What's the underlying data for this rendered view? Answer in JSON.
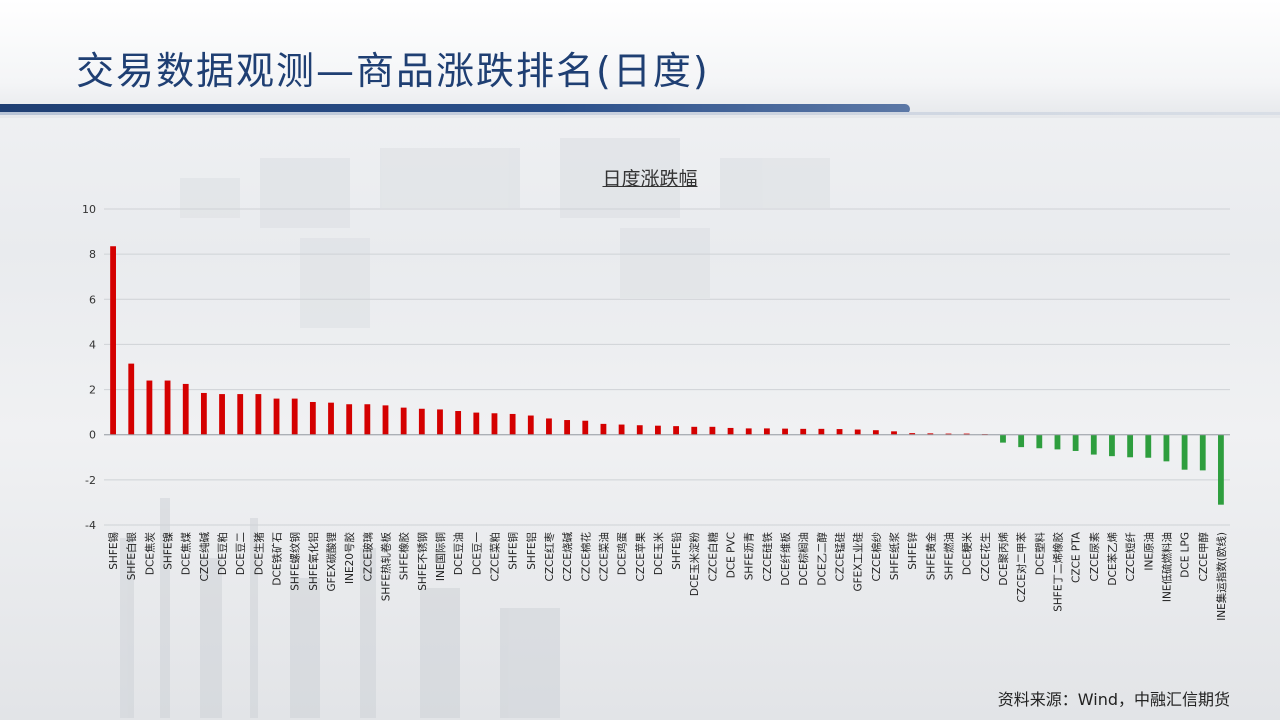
{
  "page": {
    "title": "交易数据观测—商品涨跌排名(日度)",
    "source": "资料来源：Wind，中融汇信期货"
  },
  "colors": {
    "up": "#d40000",
    "down": "#2e9e3e",
    "title": "#1f3f73",
    "accent_line": "#1f3f73"
  },
  "chart_data": {
    "type": "bar",
    "title": "日度涨跌幅",
    "xlabel": "",
    "ylabel": "",
    "ylim": [
      -4,
      10
    ],
    "yticks": [
      -4,
      -2,
      0,
      2,
      4,
      6,
      8,
      10
    ],
    "grid": true,
    "legend": "none",
    "categories": [
      "SHFE锡",
      "SHFE白银",
      "DCE焦炭",
      "SHFE镍",
      "DCE焦煤",
      "CZCE纯碱",
      "DCE豆粕",
      "DCE豆二",
      "DCE生猪",
      "DCE铁矿石",
      "SHFE螺纹钢",
      "SHFE氧化铝",
      "GFEX碳酸锂",
      "INE20号胶",
      "CZCE玻璃",
      "SHFE热轧卷板",
      "SHFE橡胶",
      "SHFE不锈钢",
      "INE国际铜",
      "DCE豆油",
      "DCE豆一",
      "CZCE菜粕",
      "SHFE铜",
      "SHFE铝",
      "CZCE红枣",
      "CZCE烧碱",
      "CZCE棉花",
      "CZCE菜油",
      "DCE鸡蛋",
      "CZCE苹果",
      "DCE玉米",
      "SHFE铅",
      "DCE玉米淀粉",
      "CZCE白糖",
      "DCE PVC",
      "SHFE沥青",
      "CZCE硅铁",
      "DCE纤维板",
      "DCE棕榈油",
      "DCE乙二醇",
      "CZCE锰硅",
      "GFEX工业硅",
      "CZCE棉纱",
      "SHFE纸浆",
      "SHFE锌",
      "SHFE黄金",
      "SHFE燃油",
      "DCE粳米",
      "CZCE花生",
      "DCE聚丙烯",
      "CZCE对二甲苯",
      "DCE塑料",
      "SHFE丁二烯橡胶",
      "CZCE PTA",
      "CZCE尿素",
      "DCE苯乙烯",
      "CZCE短纤",
      "INE原油",
      "INE低硫燃料油",
      "DCE LPG",
      "CZCE甲醇",
      "INE集运指数(欧线)"
    ],
    "values": [
      8.35,
      3.15,
      2.4,
      2.4,
      2.25,
      1.85,
      1.8,
      1.8,
      1.8,
      1.6,
      1.6,
      1.45,
      1.42,
      1.35,
      1.35,
      1.3,
      1.2,
      1.15,
      1.12,
      1.05,
      0.98,
      0.95,
      0.92,
      0.85,
      0.72,
      0.65,
      0.62,
      0.48,
      0.45,
      0.42,
      0.4,
      0.38,
      0.35,
      0.35,
      0.3,
      0.28,
      0.28,
      0.27,
      0.26,
      0.26,
      0.25,
      0.23,
      0.2,
      0.15,
      0.07,
      0.06,
      0.05,
      0.05,
      0.03,
      -0.35,
      -0.55,
      -0.6,
      -0.65,
      -0.72,
      -0.88,
      -0.95,
      -1.0,
      -1.02,
      -1.18,
      -1.55,
      -1.58,
      -3.1
    ]
  }
}
